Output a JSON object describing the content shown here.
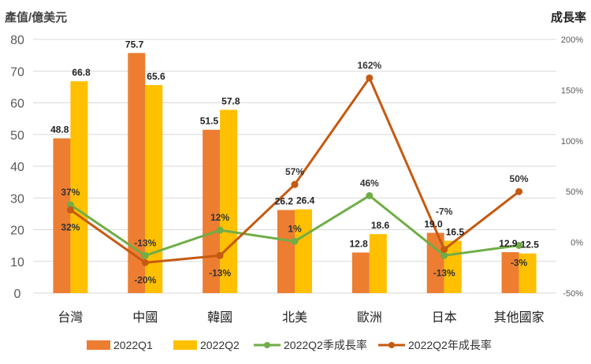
{
  "chart_data": {
    "type": "bar+line",
    "ylabel_left": "產值/億美元",
    "ylabel_right": "成長率",
    "ylim_left": [
      0,
      80
    ],
    "yticks_left": [
      "0",
      "10",
      "20",
      "30",
      "40",
      "50",
      "60",
      "70",
      "80"
    ],
    "ylim_right": [
      -50,
      200
    ],
    "yticks_right": [
      "-50%",
      "0%",
      "50%",
      "100%",
      "150%",
      "200%"
    ],
    "grid": true,
    "legend_position": "bottom",
    "categories": [
      "台灣",
      "中國",
      "韓國",
      "北美",
      "歐洲",
      "日本",
      "其他國家"
    ],
    "bar_series": [
      {
        "name": "2022Q1",
        "color": "#ED7D31",
        "values": [
          48.8,
          75.7,
          51.5,
          26.2,
          12.8,
          19.0,
          12.9
        ],
        "labels": [
          "48.8",
          "75.7",
          "51.5",
          "26.2",
          "12.8",
          "19.0",
          "12.9"
        ]
      },
      {
        "name": "2022Q2",
        "color": "#FFC000",
        "values": [
          66.8,
          65.6,
          57.8,
          26.4,
          18.6,
          16.5,
          12.5
        ],
        "labels": [
          "66.8",
          "65.6",
          "57.8",
          "26.4",
          "18.6",
          "16.5",
          "12.5"
        ]
      }
    ],
    "line_series": [
      {
        "name": "2022Q2季成長率",
        "color": "#70AD47",
        "values": [
          37,
          -13,
          12,
          1,
          46,
          -13,
          -3
        ],
        "labels": [
          "37%",
          "-13%",
          "12%",
          "1%",
          "46%",
          "-13%",
          "-3%"
        ]
      },
      {
        "name": "2022Q2年成長率",
        "color": "#C55A11",
        "values": [
          32,
          -20,
          -13,
          57,
          162,
          -7,
          50
        ],
        "labels": [
          "32%",
          "-20%",
          "-13%",
          "57%",
          "162%",
          "-7%",
          "50%"
        ]
      }
    ]
  }
}
